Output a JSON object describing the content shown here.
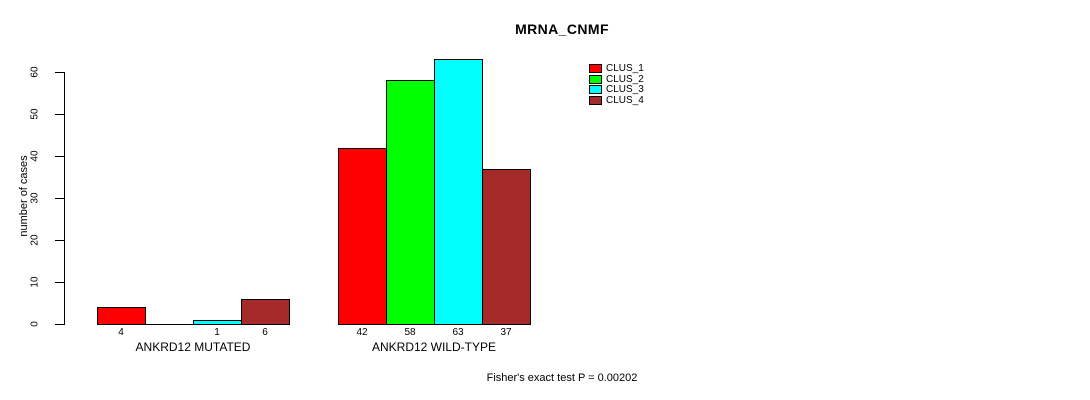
{
  "chart": {
    "title": "MRNA_CNMF",
    "ylabel": "number of cases",
    "footer": "Fisher's exact test P = 0.00202"
  },
  "chart_data": {
    "type": "bar",
    "title": "MRNA_CNMF",
    "xlabel": "",
    "ylabel": "number of cases",
    "ylim": [
      0,
      65
    ],
    "yticks": [
      0,
      10,
      20,
      30,
      40,
      50,
      60
    ],
    "grid": false,
    "legend_position": "top-right",
    "annotation": "Fisher's exact test P = 0.00202",
    "series": [
      {
        "name": "CLUS_1",
        "color": "#FF0000"
      },
      {
        "name": "CLUS_2",
        "color": "#00FF00"
      },
      {
        "name": "CLUS_3",
        "color": "#00FFFF"
      },
      {
        "name": "CLUS_4",
        "color": "#A52A2A"
      }
    ],
    "groups": [
      {
        "label": "ANKRD12 MUTATED",
        "values": [
          4,
          0,
          1,
          6
        ],
        "bar_labels": [
          "4",
          "",
          "1",
          "6"
        ]
      },
      {
        "label": "ANKRD12 WILD-TYPE",
        "values": [
          42,
          58,
          63,
          37
        ],
        "bar_labels": [
          "42",
          "58",
          "63",
          "37"
        ]
      }
    ],
    "colors": {
      "axis": "#000000",
      "text": "#000000",
      "background": "#FFFFFF"
    }
  }
}
